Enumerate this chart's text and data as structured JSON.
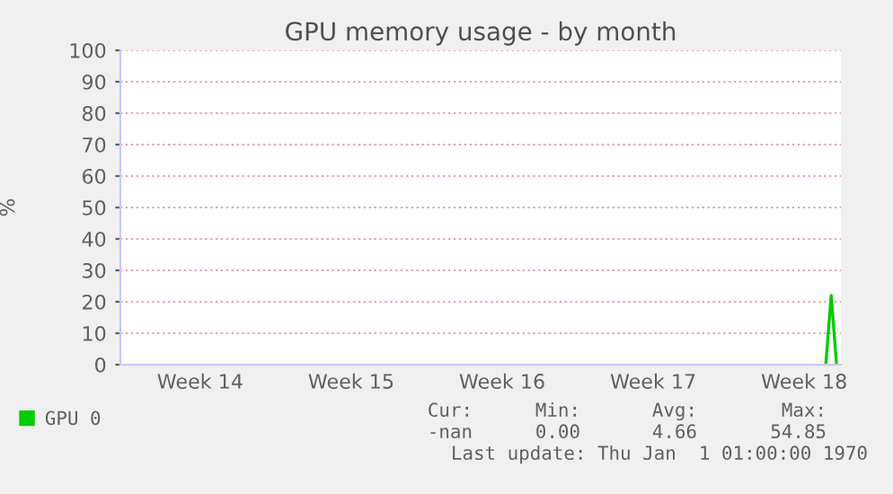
{
  "chart_data": {
    "type": "line",
    "title": "GPU memory usage - by month",
    "ylabel": "%",
    "categories": [
      null,
      null,
      null,
      null,
      null,
      null,
      null,
      null,
      null,
      null,
      null,
      null,
      null,
      null,
      "Week 14",
      null,
      null,
      null,
      null,
      null,
      null,
      null,
      null,
      null,
      null,
      null,
      null,
      null,
      null,
      null,
      null,
      null,
      null,
      null,
      null,
      null,
      null,
      null,
      null,
      null,
      null,
      null,
      "Week 15",
      null,
      null,
      null,
      null,
      null,
      null,
      null,
      null,
      null,
      null,
      null,
      null,
      null,
      null,
      null,
      null,
      null,
      null,
      null,
      null,
      null,
      null,
      null,
      null,
      null,
      null,
      null,
      "Week 16",
      null,
      null,
      null,
      null,
      null,
      null,
      null,
      null,
      null,
      null,
      null,
      null,
      null,
      null,
      null,
      null,
      null,
      null,
      null,
      null,
      null,
      null,
      null,
      null,
      null,
      null,
      null,
      "Week 17",
      null,
      null,
      null,
      null,
      null,
      null,
      null,
      null,
      null,
      null,
      null,
      null,
      null,
      null,
      null,
      null,
      null,
      null,
      null,
      null,
      null,
      null,
      null,
      null,
      null,
      null,
      null,
      "Week 18",
      null,
      null,
      null,
      null,
      null,
      null
    ],
    "series": [
      {
        "name": "GPU 0",
        "color": "#00cc00",
        "values": [
          null,
          null,
          null,
          null,
          null,
          null,
          null,
          null,
          null,
          null,
          null,
          null,
          null,
          null,
          null,
          null,
          null,
          null,
          null,
          null,
          null,
          null,
          null,
          null,
          null,
          null,
          null,
          null,
          null,
          null,
          null,
          null,
          null,
          null,
          null,
          null,
          null,
          null,
          null,
          null,
          null,
          null,
          null,
          null,
          null,
          null,
          null,
          null,
          null,
          null,
          null,
          null,
          null,
          null,
          null,
          null,
          null,
          null,
          null,
          null,
          null,
          null,
          null,
          null,
          null,
          null,
          null,
          null,
          null,
          null,
          null,
          null,
          null,
          null,
          null,
          null,
          null,
          null,
          null,
          null,
          null,
          null,
          null,
          null,
          null,
          null,
          null,
          null,
          null,
          null,
          null,
          null,
          null,
          null,
          null,
          null,
          null,
          null,
          null,
          null,
          null,
          null,
          null,
          null,
          null,
          null,
          null,
          null,
          null,
          null,
          null,
          null,
          null,
          null,
          null,
          null,
          null,
          null,
          null,
          null,
          null,
          null,
          null,
          null,
          null,
          null,
          null,
          null,
          null,
          null,
          0,
          22,
          0
        ]
      }
    ],
    "ylim": [
      0,
      100
    ],
    "yticks": [
      0,
      10,
      20,
      30,
      40,
      50,
      60,
      70,
      80,
      90,
      100
    ],
    "grid": "y",
    "legend": "bottom left",
    "marker": "none",
    "line_style": "solid",
    "annotations": [
      "Cur:",
      "Min:",
      "Avg:",
      "Max:",
      "-nan",
      "0.00",
      "4.66",
      "54.85",
      "Last update: Thu Jan  1 01:00:00 1970"
    ]
  }
}
